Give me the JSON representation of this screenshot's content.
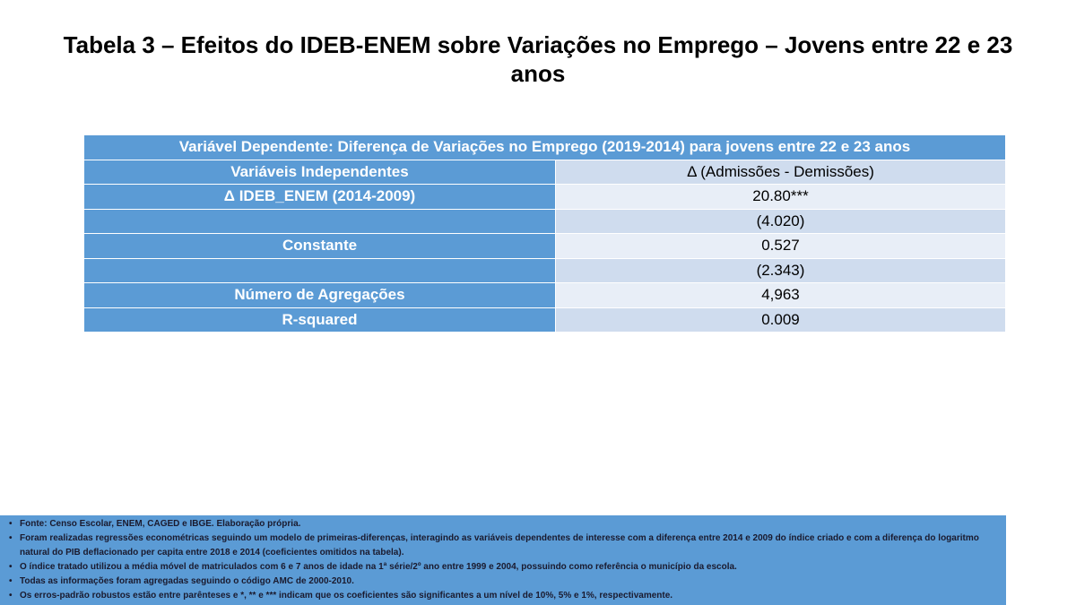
{
  "title": "Tabela 3 –  Efeitos do IDEB-ENEM sobre Variações no Emprego – Jovens entre 22 e 23 anos",
  "table": {
    "caption": "Variável Dependente: Diferença de Variações no Emprego (2019-2014) para jovens entre 22 e 23 anos",
    "header": [
      "Variáveis Independentes",
      "Δ (Admissões - Demissões)"
    ],
    "rows": [
      [
        "Δ IDEB_ENEM (2014-2009)",
        "20.80***"
      ],
      [
        "",
        "(4.020)"
      ],
      [
        "Constante",
        "0.527"
      ],
      [
        "",
        "(2.343)"
      ],
      [
        "Número de Agregações",
        "4,963"
      ],
      [
        "R-squared",
        "0.009"
      ]
    ]
  },
  "notes": [
    "Fonte: Censo Escolar, ENEM, CAGED e IBGE. Elaboração própria.",
    "Foram realizadas regressões econométricas seguindo um modelo de primeiras-diferenças, interagindo as variáveis dependentes de interesse com a diferença entre 2014 e 2009 do índice criado e com a diferença do logaritmo natural do PIB deflacionado per capita entre 2018 e 2014 (coeficientes omitidos na tabela).",
    "O índice tratado utilizou a média móvel de matriculados com 6 e 7 anos de idade na 1ª série/2º ano entre 1999 e 2004, possuindo como referência o município da escola.",
    "Todas as informações foram agregadas seguindo o código AMC de 2000-2010.",
    "Os erros-padrão robustos estão entre parênteses e *, ** e *** indicam que os coeficientes são significantes a um nível de 10%, 5% e 1%, respectivamente."
  ]
}
